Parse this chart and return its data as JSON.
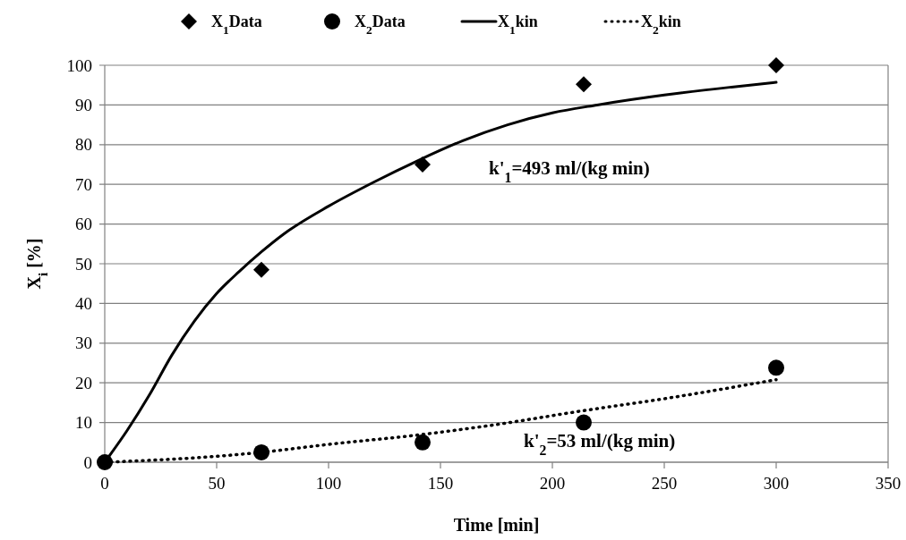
{
  "chart_data": {
    "type": "scatter",
    "xlabel": "Time [min]",
    "ylabel": "X$_{i}$ [%]",
    "xlim": [
      0,
      350
    ],
    "xticks": [
      0,
      50,
      100,
      150,
      200,
      250,
      300,
      350
    ],
    "ylim": [
      0,
      100
    ],
    "yticks": [
      0,
      10,
      20,
      30,
      40,
      50,
      60,
      70,
      80,
      90,
      100
    ],
    "grid": "y",
    "legend": "top",
    "series": [
      {
        "name": "X$_{1}$Data",
        "marker": "diamond",
        "color": "#000000",
        "x": [
          70,
          142,
          214,
          300
        ],
        "values": [
          48.5,
          75,
          95.2,
          100
        ]
      },
      {
        "name": "X$_{2}$Data",
        "marker": "circle",
        "color": "#000000",
        "x": [
          0,
          70,
          142,
          214,
          300
        ],
        "values": [
          0,
          2.5,
          5,
          10,
          23.8
        ]
      },
      {
        "name": "X$_{1}$kin",
        "type": "line",
        "line_style": "solid",
        "color": "#000000",
        "x": [
          0,
          10,
          20,
          30,
          40,
          50,
          60,
          70,
          80,
          100,
          120,
          140,
          160,
          180,
          200,
          220,
          250,
          280,
          300
        ],
        "values": [
          0,
          8,
          17,
          27,
          35.5,
          42.5,
          48,
          53,
          57.5,
          64.5,
          70.5,
          76,
          81,
          85,
          88,
          90,
          92.5,
          94.5,
          95.7
        ]
      },
      {
        "name": "X$_{2}$kin",
        "type": "line",
        "line_style": "dotted",
        "color": "#000000",
        "x": [
          0,
          50,
          70,
          100,
          142,
          175,
          214,
          250,
          300
        ],
        "values": [
          0,
          1.5,
          2.5,
          4.5,
          7,
          9.5,
          13,
          16,
          20.8
        ]
      }
    ],
    "annotations": [
      "k'$_{1}$=493 ml/(kg min)",
      "k'$_{2}$=53 ml/(kg min)"
    ]
  }
}
